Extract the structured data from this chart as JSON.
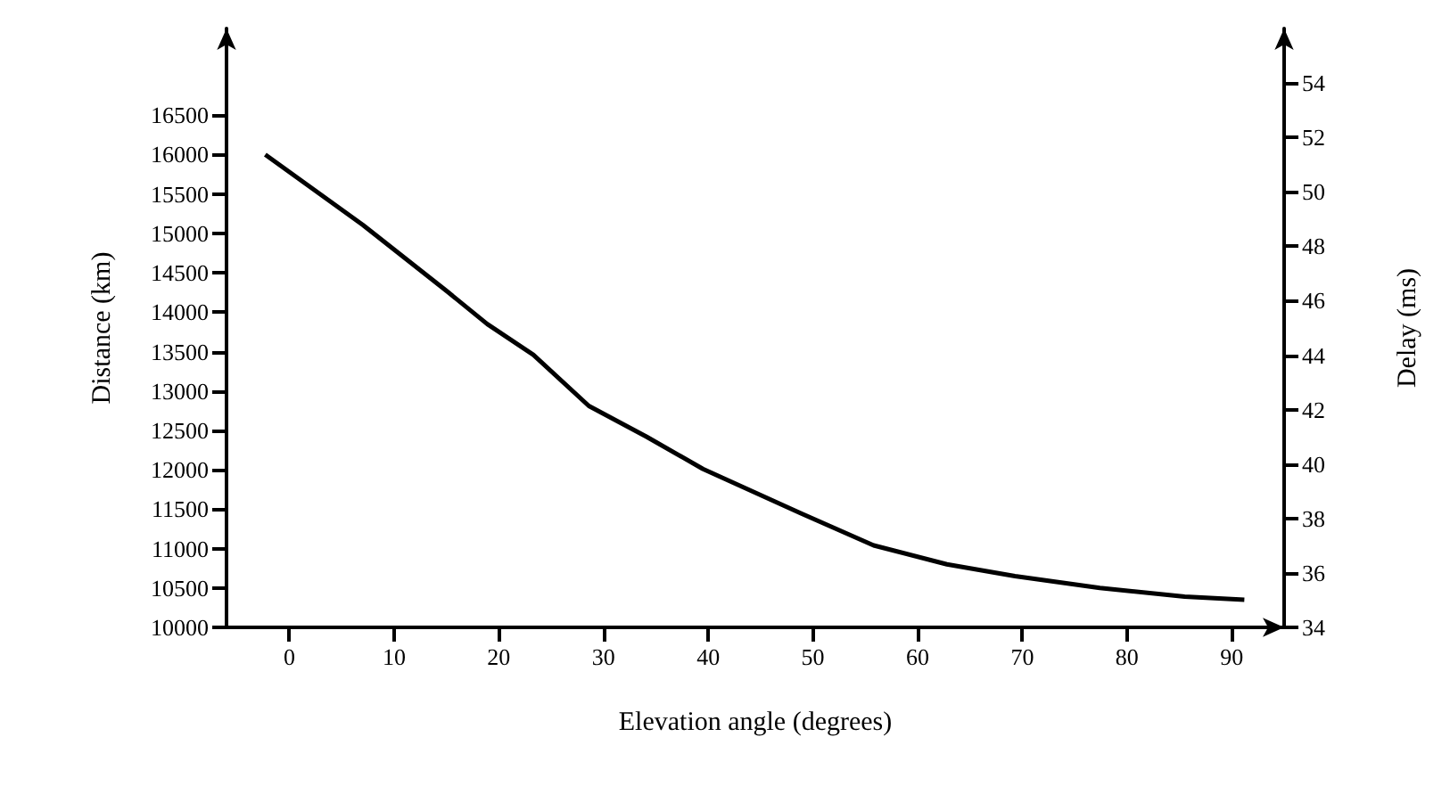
{
  "chart_data": {
    "type": "line",
    "xlabel": "Elevation angle (degrees)",
    "ylabel": "Distance (km)",
    "y2label": "Delay (ms)",
    "x": [
      -2.3,
      7.0,
      15.1,
      18.9,
      23.3,
      28.6,
      34.1,
      39.5,
      48.8,
      55.8,
      62.8,
      69.3,
      77.4,
      85.5,
      91.2
    ],
    "series": [
      {
        "color": "#000000",
        "values": [
          16000,
          15110,
          14260,
          13850,
          13460,
          12810,
          12420,
          12010,
          11450,
          11040,
          10800,
          10650,
          10500,
          10390,
          10350
        ]
      }
    ],
    "xlim": [
      -6,
      95
    ],
    "xticks": [
      0,
      10,
      20,
      30,
      40,
      50,
      60,
      70,
      80,
      90
    ],
    "ylim": [
      10000,
      17600
    ],
    "yticks": [
      10000,
      10500,
      11000,
      11500,
      12000,
      12500,
      13000,
      13500,
      14000,
      14500,
      15000,
      15500,
      16000,
      16500
    ],
    "y2lim": [
      34,
      56
    ],
    "y2ticks": [
      34,
      36,
      38,
      40,
      42,
      44,
      46,
      48,
      50,
      52,
      54
    ],
    "marker": "none",
    "line_style": "solid"
  }
}
